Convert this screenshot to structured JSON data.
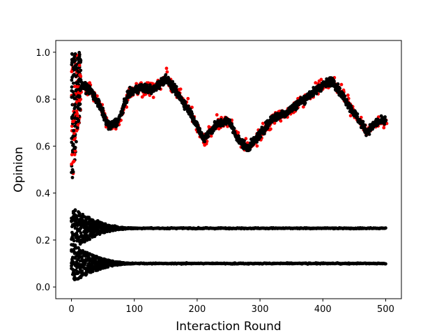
{
  "chart_data": {
    "type": "scatter",
    "title": "",
    "xlabel": "Interaction Round",
    "ylabel": "Opinion",
    "xlim": [
      -25,
      525
    ],
    "ylim": [
      -0.05,
      1.05
    ],
    "xticks": [
      0,
      100,
      200,
      300,
      400,
      500
    ],
    "yticks": [
      0.0,
      0.2,
      0.4,
      0.6,
      0.8,
      1.0
    ],
    "xtick_labels": [
      "0",
      "100",
      "200",
      "300",
      "400",
      "500"
    ],
    "ytick_labels": [
      "0.0",
      "0.2",
      "0.4",
      "0.6",
      "0.8",
      "1.0"
    ],
    "rounds": 500,
    "series": [
      {
        "name": "upper cluster (red)",
        "color": "#ff0000"
      },
      {
        "name": "agents (black)",
        "color": "#000000"
      }
    ],
    "upper_cluster_trend": {
      "x": [
        0,
        15,
        30,
        45,
        60,
        75,
        90,
        110,
        130,
        150,
        170,
        190,
        210,
        230,
        250,
        265,
        280,
        300,
        320,
        340,
        360,
        380,
        400,
        415,
        430,
        450,
        470,
        485,
        500
      ],
      "y": [
        0.55,
        0.86,
        0.84,
        0.77,
        0.68,
        0.71,
        0.82,
        0.85,
        0.84,
        0.89,
        0.82,
        0.74,
        0.63,
        0.69,
        0.71,
        0.63,
        0.59,
        0.65,
        0.72,
        0.74,
        0.78,
        0.82,
        0.86,
        0.88,
        0.82,
        0.74,
        0.66,
        0.7,
        0.71
      ]
    },
    "lower_clusters": [
      {
        "converged_value": 0.25,
        "initial_range": [
          0.16,
          0.34
        ],
        "converged_by_round": 100
      },
      {
        "converged_value": 0.1,
        "initial_range": [
          0.01,
          0.18
        ],
        "converged_by_round": 100
      }
    ],
    "initial_spread": {
      "x_range": [
        0,
        15
      ],
      "y_range": [
        0.42,
        1.0
      ]
    }
  }
}
